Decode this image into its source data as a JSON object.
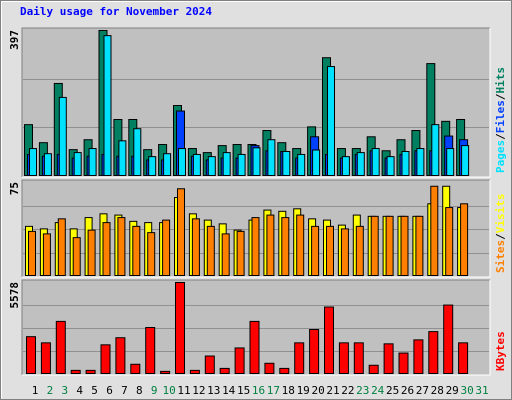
{
  "chart_data": {
    "type": "bar",
    "title": "Daily usage for November 2024",
    "title_color": "#0000ff",
    "categories": [
      "1",
      "2",
      "3",
      "4",
      "5",
      "6",
      "7",
      "8",
      "9",
      "10",
      "11",
      "12",
      "13",
      "14",
      "15",
      "16",
      "17",
      "18",
      "19",
      "20",
      "21",
      "22",
      "23",
      "24",
      "25",
      "26",
      "27",
      "28",
      "29",
      "30",
      "31"
    ],
    "category_colors": [
      "#000000",
      "#008040",
      "#008040",
      "#000000",
      "#000000",
      "#000000",
      "#000000",
      "#000000",
      "#008040",
      "#008040",
      "#000000",
      "#000000",
      "#000000",
      "#000000",
      "#000000",
      "#008040",
      "#008040",
      "#000000",
      "#000000",
      "#000000",
      "#000000",
      "#000000",
      "#008040",
      "#008040",
      "#000000",
      "#000000",
      "#000000",
      "#000000",
      "#000000",
      "#008040",
      "#008040"
    ],
    "legend_separator": "/",
    "panels": [
      {
        "ylim": [
          0,
          397
        ],
        "yticks": [
          397
        ],
        "grid_divisions": 3,
        "series": [
          {
            "name": "Hits",
            "color": "#008060",
            "values": [
              141,
              92,
              253,
              73,
              100,
              397,
              155,
              155,
              73,
              87,
              193,
              76,
              65,
              84,
              87,
              87,
              125,
              92,
              76,
              135,
              323,
              76,
              76,
              108,
              70,
              100,
              125,
              307,
              150,
              155,
              null
            ]
          },
          {
            "name": "Files",
            "color": "#0040ff",
            "values": [
              60,
              55,
              60,
              50,
              55,
              60,
              55,
              55,
              45,
              45,
              178,
              55,
              45,
              50,
              50,
              84,
              70,
              68,
              50,
              108,
              60,
              50,
              60,
              70,
              50,
              60,
              70,
              70,
              110,
              100,
              null
            ]
          },
          {
            "name": "Pages",
            "color": "#00e0ff",
            "values": [
              76,
              62,
              215,
              65,
              76,
              383,
              97,
              130,
              54,
              62,
              76,
              60,
              54,
              65,
              60,
              78,
              100,
              68,
              60,
              72,
              299,
              54,
              65,
              76,
              54,
              68,
              76,
              141,
              76,
              84,
              null
            ]
          }
        ]
      },
      {
        "ylim": [
          0,
          75
        ],
        "yticks": [
          75
        ],
        "grid_divisions": 4,
        "series": [
          {
            "name": "Visits",
            "color": "#ffff00",
            "values": [
              40,
              38,
              43,
              38,
              47,
              50,
              49,
              44,
              43,
              43,
              63,
              50,
              45,
              42,
              37,
              45,
              53,
              52,
              54,
              46,
              45,
              41,
              49,
              48,
              48,
              48,
              48,
              58,
              72,
              55,
              null
            ]
          },
          {
            "name": "Sites",
            "color": "#ff8000",
            "values": [
              36,
              34,
              46,
              31,
              37,
              43,
              47,
              40,
              35,
              45,
              70,
              46,
              40,
              34,
              36,
              47,
              49,
              47,
              49,
              40,
              40,
              38,
              40,
              48,
              48,
              48,
              48,
              72,
              55,
              58,
              null
            ]
          }
        ]
      },
      {
        "ylim": [
          0,
          5578
        ],
        "yticks": [
          5578
        ],
        "grid_divisions": 4,
        "series": [
          {
            "name": "KBytes",
            "color": "#ff0000",
            "values": [
              2294,
              1920,
              3220,
              250,
              250,
              1800,
              2230,
              620,
              2850,
              190,
              5578,
              250,
              1120,
              370,
              1610,
              3220,
              680,
              370,
              1920,
              2730,
              4090,
              1920,
              1920,
              560,
              1860,
              1300,
              2100,
              2600,
              4210,
              1920,
              null
            ]
          }
        ]
      }
    ]
  }
}
